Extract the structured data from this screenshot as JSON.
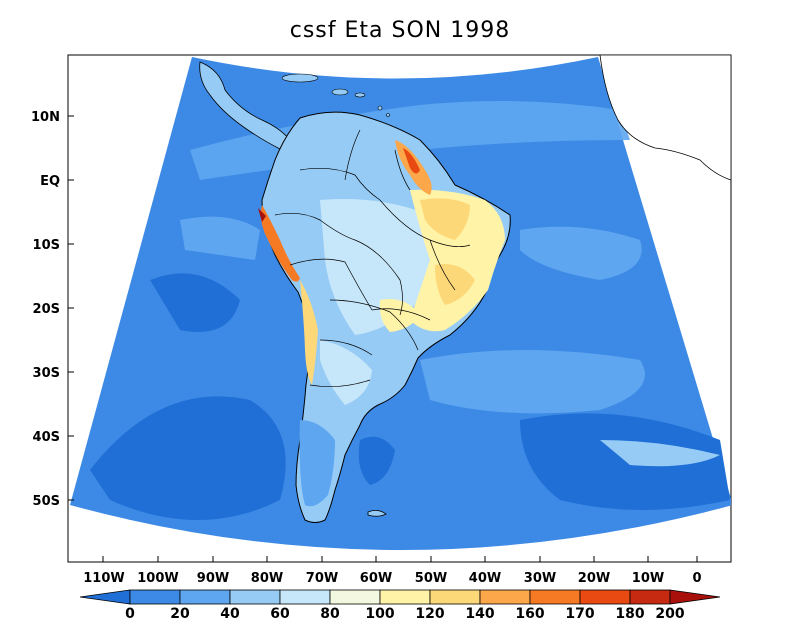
{
  "title": "cssf Eta SON 1998",
  "colors": {
    "ocean_outside": "#ffffff",
    "c0": "#1f6fd6",
    "c20": "#3d8ae6",
    "c40": "#5ea6f0",
    "c60": "#96cbf5",
    "c80": "#c6e6fa",
    "c100": "#f3f9e0",
    "c120": "#fff3a8",
    "c140": "#fdd879",
    "c160": "#fba74a",
    "c170": "#f67a24",
    "c180": "#e84a12",
    "c200": "#a8100c"
  },
  "lat_labels": [
    "10N",
    "EQ",
    "10S",
    "20S",
    "30S",
    "40S",
    "50S"
  ],
  "lon_labels": [
    "110W",
    "100W",
    "90W",
    "80W",
    "70W",
    "60W",
    "50W",
    "40W",
    "30W",
    "20W",
    "10W",
    "0"
  ],
  "colorbar": {
    "labels": [
      "0",
      "20",
      "40",
      "60",
      "80",
      "100",
      "120",
      "140",
      "160",
      "170",
      "180",
      "200"
    ]
  }
}
